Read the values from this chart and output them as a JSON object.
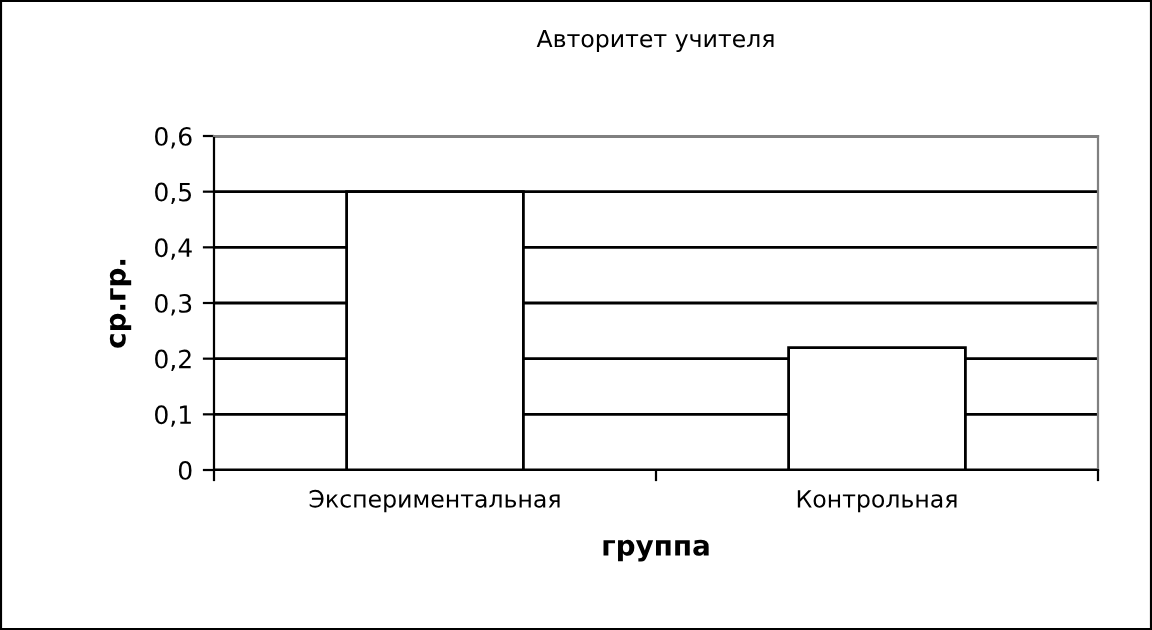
{
  "chart_data": {
    "type": "bar",
    "title": "Авторитет учителя",
    "xlabel": "группа",
    "ylabel": "ср.гр.",
    "categories": [
      "Экспериментальная",
      "Контрольная"
    ],
    "values": [
      0.5,
      0.22
    ],
    "color": "#ffffff",
    "ylim": [
      0,
      0.6
    ],
    "yticks": [
      {
        "value": 0,
        "label": "0"
      },
      {
        "value": 0.1,
        "label": "0,1"
      },
      {
        "value": 0.2,
        "label": "0,2"
      },
      {
        "value": 0.3,
        "label": "0,3"
      },
      {
        "value": 0.4,
        "label": "0,4"
      },
      {
        "value": 0.5,
        "label": "0,5"
      },
      {
        "value": 0.6,
        "label": "0,6"
      }
    ],
    "grid": "y",
    "legend": false
  }
}
